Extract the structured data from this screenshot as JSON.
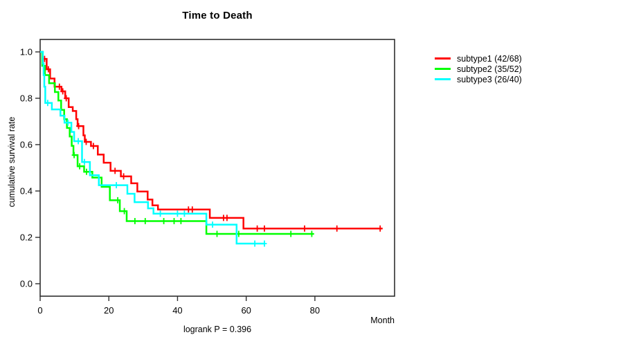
{
  "chart_data": {
    "type": "line",
    "subtype": "kaplan-meier-step-curves",
    "title": "Time to Death",
    "xlabel": "Month",
    "ylabel": "cumulative survival rate",
    "annotation": "logrank P = 0.396",
    "xlim": [
      0,
      103.2
    ],
    "ylim": [
      0,
      1.04
    ],
    "xticks": [
      0,
      20,
      40,
      60,
      80
    ],
    "yticks": [
      0.0,
      0.2,
      0.4,
      0.6,
      0.8,
      1.0
    ],
    "grid": false,
    "legend_position": "right-outside",
    "axis_color": "#2e2e2e",
    "series": [
      {
        "name": "subtype1",
        "label": "subtype1 (42/68)",
        "events": 42,
        "n": 68,
        "color": "#ff0000",
        "end_time": 99.7,
        "steps": [
          [
            0,
            1.0
          ],
          [
            0.7,
            0.97
          ],
          [
            1.9,
            0.925
          ],
          [
            2.9,
            0.885
          ],
          [
            4.2,
            0.85
          ],
          [
            6.2,
            0.83
          ],
          [
            7.3,
            0.8
          ],
          [
            8.3,
            0.762
          ],
          [
            9.5,
            0.745
          ],
          [
            10.5,
            0.71
          ],
          [
            10.9,
            0.68
          ],
          [
            12.6,
            0.64
          ],
          [
            13.0,
            0.612
          ],
          [
            14.8,
            0.594
          ],
          [
            16.8,
            0.557
          ],
          [
            18.5,
            0.522
          ],
          [
            20.5,
            0.487
          ],
          [
            23.5,
            0.463
          ],
          [
            26.5,
            0.433
          ],
          [
            28.3,
            0.398
          ],
          [
            31.3,
            0.363
          ],
          [
            32.7,
            0.338
          ],
          [
            34.3,
            0.32
          ],
          [
            49.4,
            0.284
          ],
          [
            59.2,
            0.238
          ]
        ],
        "censors": [
          [
            1.3,
            0.97
          ],
          [
            2.4,
            0.925
          ],
          [
            5.6,
            0.85
          ],
          [
            6.6,
            0.83
          ],
          [
            7.6,
            0.8
          ],
          [
            11.2,
            0.68
          ],
          [
            13.4,
            0.612
          ],
          [
            15.5,
            0.594
          ],
          [
            21.8,
            0.487
          ],
          [
            24.3,
            0.463
          ],
          [
            43.2,
            0.32
          ],
          [
            44.3,
            0.32
          ],
          [
            53.4,
            0.284
          ],
          [
            54.4,
            0.284
          ],
          [
            63.2,
            0.238
          ],
          [
            65.3,
            0.238
          ],
          [
            77.0,
            0.238
          ],
          [
            86.4,
            0.238
          ],
          [
            99.0,
            0.238
          ]
        ]
      },
      {
        "name": "subtype2",
        "label": "subtype2 (35/52)",
        "events": 35,
        "n": 52,
        "color": "#00ff00",
        "end_time": 79.6,
        "steps": [
          [
            0,
            1.0
          ],
          [
            0.6,
            0.94
          ],
          [
            1.4,
            0.9
          ],
          [
            2.6,
            0.865
          ],
          [
            4.3,
            0.827
          ],
          [
            5.3,
            0.79
          ],
          [
            6.1,
            0.75
          ],
          [
            7.0,
            0.71
          ],
          [
            7.8,
            0.672
          ],
          [
            8.6,
            0.635
          ],
          [
            9.2,
            0.595
          ],
          [
            9.7,
            0.555
          ],
          [
            10.9,
            0.507
          ],
          [
            12.8,
            0.483
          ],
          [
            15.2,
            0.458
          ],
          [
            17.9,
            0.418
          ],
          [
            20.3,
            0.36
          ],
          [
            23.2,
            0.313
          ],
          [
            25.2,
            0.27
          ],
          [
            48.4,
            0.215
          ]
        ],
        "censors": [
          [
            9.9,
            0.555
          ],
          [
            11.5,
            0.507
          ],
          [
            13.5,
            0.483
          ],
          [
            22.6,
            0.36
          ],
          [
            24.5,
            0.313
          ],
          [
            27.6,
            0.27
          ],
          [
            30.6,
            0.27
          ],
          [
            36.0,
            0.27
          ],
          [
            39.0,
            0.27
          ],
          [
            41.0,
            0.27
          ],
          [
            51.5,
            0.215
          ],
          [
            57.8,
            0.215
          ],
          [
            73.0,
            0.215
          ],
          [
            79.1,
            0.215
          ]
        ]
      },
      {
        "name": "subtype3",
        "label": "subtype3 (26/40)",
        "events": 26,
        "n": 40,
        "color": "#00ffff",
        "end_time": 65.5,
        "steps": [
          [
            0,
            1.0
          ],
          [
            0.8,
            0.95
          ],
          [
            1.0,
            0.9
          ],
          [
            1.2,
            0.85
          ],
          [
            1.5,
            0.78
          ],
          [
            3.4,
            0.752
          ],
          [
            5.9,
            0.725
          ],
          [
            7.1,
            0.695
          ],
          [
            9.1,
            0.655
          ],
          [
            9.9,
            0.615
          ],
          [
            12.2,
            0.525
          ],
          [
            14.5,
            0.468
          ],
          [
            17.1,
            0.425
          ],
          [
            25.4,
            0.388
          ],
          [
            27.5,
            0.352
          ],
          [
            31.4,
            0.325
          ],
          [
            33.0,
            0.302
          ],
          [
            48.4,
            0.255
          ],
          [
            57.2,
            0.173
          ]
        ],
        "censors": [
          [
            2.2,
            0.78
          ],
          [
            8.1,
            0.695
          ],
          [
            11.1,
            0.615
          ],
          [
            12.9,
            0.525
          ],
          [
            22.2,
            0.425
          ],
          [
            35.0,
            0.302
          ],
          [
            40.0,
            0.302
          ],
          [
            42.0,
            0.302
          ],
          [
            50.2,
            0.255
          ],
          [
            62.5,
            0.173
          ],
          [
            65.3,
            0.173
          ]
        ]
      }
    ]
  }
}
